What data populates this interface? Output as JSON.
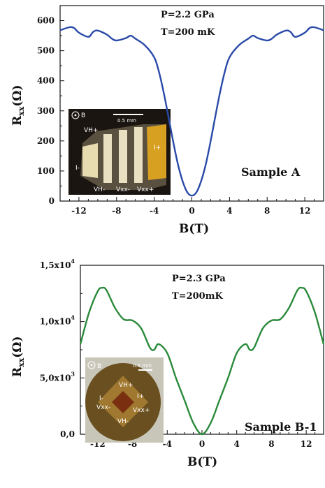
{
  "chart_data": [
    {
      "type": "line",
      "panel": "A",
      "x_tick_labels": [
        "-12",
        "-8",
        "-4",
        "0",
        "4",
        "8",
        "12"
      ],
      "y_tick_labels": [
        "0",
        "100",
        "200",
        "300",
        "400",
        "500",
        "600"
      ],
      "xlabel_base": "B",
      "xlabel_unit": "(T)",
      "ylabel_base": "R",
      "ylabel_sub": "xx",
      "ylabel_unit": "(Ω)",
      "xlim": [
        -14,
        14
      ],
      "ylim": [
        0,
        650
      ],
      "annotations": [
        "P=2.2 GPa",
        "T=200 mK"
      ],
      "sample_label": "Sample A",
      "series": [
        {
          "color": "#2a4aa8",
          "x": [
            -14,
            -13,
            -12.5,
            -12,
            -11,
            -10.5,
            -10,
            -9,
            -8.5,
            -8,
            -7,
            -6.5,
            -6,
            -5,
            -4,
            -3.5,
            -3,
            -2.5,
            -2,
            -1.5,
            -1,
            -0.5,
            0,
            0.5,
            1,
            1.5,
            2,
            2.5,
            3,
            3.5,
            4,
            5,
            6,
            6.5,
            7,
            8,
            8.5,
            9,
            10,
            10.5,
            11,
            12,
            12.5,
            13,
            14
          ],
          "y": [
            568,
            578,
            575,
            560,
            546,
            562,
            567,
            553,
            540,
            534,
            542,
            550,
            540,
            518,
            478,
            430,
            362,
            283,
            200,
            125,
            68,
            30,
            18,
            30,
            68,
            125,
            200,
            283,
            362,
            430,
            478,
            518,
            540,
            550,
            542,
            534,
            540,
            553,
            567,
            562,
            546,
            560,
            575,
            578,
            568
          ]
        }
      ],
      "inset": {
        "labels": [
          "VH+",
          "VH-",
          "Vxx-",
          "Vxx+",
          "I-",
          "I+",
          "B"
        ],
        "scale_bar": "0.5 mm"
      }
    },
    {
      "type": "line",
      "panel": "B",
      "x_tick_labels": [
        "-12",
        "-8",
        "-4",
        "0",
        "4",
        "8",
        "12"
      ],
      "y_tick_labels": [
        "0,0",
        "5,0x10",
        "1,0x10",
        "1,5x10"
      ],
      "y_tick_exponent": "4",
      "y_tick_exponent_low": "3",
      "xlabel_base": "B",
      "xlabel_unit": "(T)",
      "ylabel_base": "R",
      "ylabel_sub": "xx",
      "ylabel_unit": "(Ω)",
      "xlim": [
        -14,
        14
      ],
      "ylim": [
        0,
        15000
      ],
      "annotations": [
        "P=2.3 GPa",
        "T=200mK"
      ],
      "sample_label": "Sample B-1",
      "series": [
        {
          "color": "#2a8a3a",
          "x": [
            -14,
            -13,
            -12,
            -11.5,
            -11,
            -10,
            -9,
            -8,
            -7,
            -6,
            -5.5,
            -5,
            -4,
            -3,
            -2,
            -1,
            0,
            1,
            2,
            3,
            4,
            5,
            5.5,
            6,
            7,
            8,
            9,
            10,
            11,
            11.5,
            12,
            13,
            14
          ],
          "y": [
            8000,
            10800,
            12700,
            13000,
            12800,
            11200,
            10200,
            10100,
            9400,
            7700,
            7500,
            8000,
            7200,
            5000,
            3000,
            1000,
            0,
            1000,
            3000,
            5000,
            7200,
            8000,
            7500,
            7700,
            9400,
            10100,
            10200,
            11200,
            12800,
            13000,
            12700,
            10800,
            8000
          ]
        }
      ],
      "inset": {
        "labels": [
          "VH+",
          "VH-",
          "Vxx-",
          "Vxx+",
          "I-",
          "I+",
          "B"
        ],
        "scale_bar": "0.5 mm"
      }
    }
  ]
}
